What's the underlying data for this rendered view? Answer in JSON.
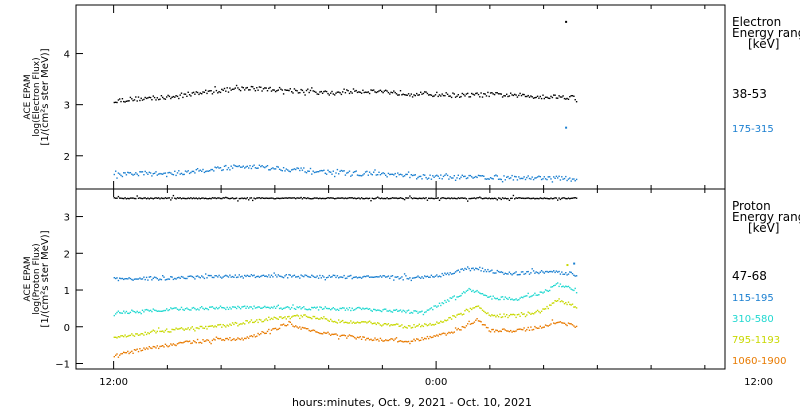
{
  "chart_data": [
    {
      "type": "scatter",
      "panel": "electron",
      "ylabel_lines": [
        "ACE EPAM",
        "log(Electron Flux)",
        "[1/(cm²s ster MeV)]"
      ],
      "yticks": [
        2,
        3,
        4
      ],
      "ylim": [
        1.35,
        4.95
      ],
      "legend_title_lines": [
        "Electron",
        "Energy ranges",
        "[keV]"
      ],
      "series": [
        {
          "name": "38-53",
          "color": "#000000",
          "anchors": [
            [
              0,
              3.08
            ],
            [
              2,
              3.12
            ],
            [
              4,
              3.14
            ],
            [
              6,
              3.22
            ],
            [
              8,
              3.28
            ],
            [
              10,
              3.32
            ],
            [
              12,
              3.3
            ],
            [
              14,
              3.27
            ],
            [
              16,
              3.22
            ],
            [
              18,
              3.27
            ],
            [
              20,
              3.26
            ],
            [
              22,
              3.22
            ],
            [
              24,
              3.2
            ],
            [
              26,
              3.18
            ],
            [
              28,
              3.2
            ],
            [
              30,
              3.18
            ],
            [
              32,
              3.16
            ],
            [
              34,
              3.15
            ],
            [
              34.5,
              3.12
            ]
          ],
          "outliers": [
            [
              33.6,
              4.62
            ]
          ]
        },
        {
          "name": "175-315",
          "color": "#1a7fd0",
          "anchors": [
            [
              0,
              1.62
            ],
            [
              2,
              1.66
            ],
            [
              4,
              1.64
            ],
            [
              6,
              1.7
            ],
            [
              8,
              1.76
            ],
            [
              10,
              1.8
            ],
            [
              12,
              1.76
            ],
            [
              14,
              1.72
            ],
            [
              16,
              1.68
            ],
            [
              18,
              1.66
            ],
            [
              20,
              1.64
            ],
            [
              22,
              1.6
            ],
            [
              24,
              1.58
            ],
            [
              26,
              1.6
            ],
            [
              28,
              1.58
            ],
            [
              30,
              1.57
            ],
            [
              32,
              1.57
            ],
            [
              34,
              1.55
            ],
            [
              34.5,
              1.52
            ]
          ],
          "outliers": [
            [
              33.6,
              2.55
            ]
          ]
        }
      ]
    },
    {
      "type": "scatter",
      "panel": "proton",
      "ylabel_lines": [
        "ACE EPAM",
        "log(Proton Flux)",
        "[1/(cm²s ster MeV)]"
      ],
      "yticks": [
        -1,
        0,
        1,
        2,
        3
      ],
      "ylim": [
        -1.15,
        3.75
      ],
      "legend_title_lines": [
        "Proton",
        "Energy ranges",
        "[keV]"
      ],
      "series": [
        {
          "name": "47-68",
          "color": "#000000",
          "anchors": [
            [
              0,
              3.5
            ],
            [
              34.5,
              3.5
            ]
          ],
          "outliers": []
        },
        {
          "name": "115-195",
          "color": "#1a7fd0",
          "anchors": [
            [
              0,
              1.3
            ],
            [
              4,
              1.32
            ],
            [
              8,
              1.37
            ],
            [
              12,
              1.38
            ],
            [
              16,
              1.36
            ],
            [
              20,
              1.35
            ],
            [
              22,
              1.34
            ],
            [
              24,
              1.38
            ],
            [
              26,
              1.55
            ],
            [
              27,
              1.6
            ],
            [
              28,
              1.5
            ],
            [
              30,
              1.45
            ],
            [
              32,
              1.5
            ],
            [
              34,
              1.45
            ],
            [
              34.5,
              1.4
            ]
          ],
          "outliers": [
            [
              34.2,
              1.72
            ]
          ]
        },
        {
          "name": "310-580",
          "color": "#20d8d0",
          "anchors": [
            [
              0,
              0.38
            ],
            [
              4,
              0.48
            ],
            [
              8,
              0.52
            ],
            [
              12,
              0.52
            ],
            [
              16,
              0.5
            ],
            [
              20,
              0.46
            ],
            [
              23,
              0.38
            ],
            [
              25,
              0.75
            ],
            [
              26.5,
              1.02
            ],
            [
              28,
              0.8
            ],
            [
              30,
              0.75
            ],
            [
              32,
              0.95
            ],
            [
              33,
              1.15
            ],
            [
              34,
              1.05
            ],
            [
              34.5,
              0.95
            ]
          ],
          "outliers": []
        },
        {
          "name": "795-1193",
          "color": "#c8d800",
          "anchors": [
            [
              0,
              -0.3
            ],
            [
              4,
              -0.1
            ],
            [
              8,
              0.02
            ],
            [
              11,
              0.2
            ],
            [
              14,
              0.3
            ],
            [
              16,
              0.18
            ],
            [
              19,
              0.1
            ],
            [
              22,
              0.0
            ],
            [
              24,
              0.1
            ],
            [
              25.5,
              0.3
            ],
            [
              27,
              0.55
            ],
            [
              28,
              0.3
            ],
            [
              30,
              0.3
            ],
            [
              32,
              0.45
            ],
            [
              33,
              0.75
            ],
            [
              34,
              0.6
            ],
            [
              34.5,
              0.5
            ]
          ],
          "outliers": [
            [
              33.7,
              1.68
            ]
          ]
        },
        {
          "name": "1060-1900",
          "color": "#e87a00",
          "anchors": [
            [
              0,
              -0.78
            ],
            [
              2,
              -0.62
            ],
            [
              4,
              -0.5
            ],
            [
              6,
              -0.4
            ],
            [
              8,
              -0.35
            ],
            [
              10,
              -0.3
            ],
            [
              12,
              -0.05
            ],
            [
              13,
              0.1
            ],
            [
              14,
              -0.05
            ],
            [
              16,
              -0.2
            ],
            [
              18,
              -0.3
            ],
            [
              20,
              -0.35
            ],
            [
              22,
              -0.4
            ],
            [
              24,
              -0.25
            ],
            [
              25.5,
              -0.1
            ],
            [
              27,
              0.18
            ],
            [
              28,
              -0.1
            ],
            [
              30,
              -0.1
            ],
            [
              32,
              0.0
            ],
            [
              33,
              0.15
            ],
            [
              34,
              0.05
            ],
            [
              34.5,
              0.0
            ]
          ],
          "outliers": []
        }
      ]
    }
  ],
  "x_axis": {
    "label": "hours:minutes, Oct.  9, 2021 - Oct. 10, 2021",
    "range_hours": [
      -2.8,
      45.5
    ],
    "ticks": [
      {
        "hour": 0,
        "label": "12:00"
      },
      {
        "hour": 24,
        "label": "0:00"
      },
      {
        "hour": 48,
        "label": "12:00"
      }
    ]
  }
}
